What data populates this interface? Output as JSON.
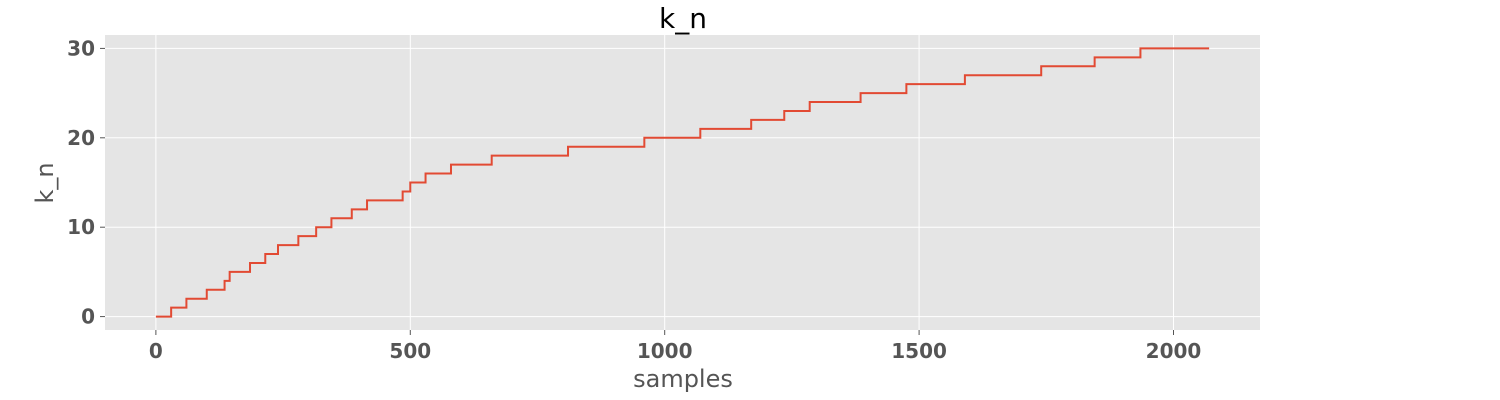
{
  "colors": {
    "plot_background": "#E5E5E5",
    "grid": "#FFFFFF",
    "line": "#E24A33",
    "text": "#555555",
    "title": "#000000"
  },
  "chart_data": {
    "type": "line",
    "style": "steps",
    "title": "k_n",
    "xlabel": "samples",
    "ylabel": "k_n",
    "xlim": [
      -100,
      2170
    ],
    "ylim": [
      -1.5,
      31.5
    ],
    "xticks": [
      0,
      500,
      1000,
      1500,
      2000
    ],
    "yticks": [
      0,
      10,
      20,
      30
    ],
    "grid": true,
    "legend": "none",
    "series": [
      {
        "x": [
          0,
          30,
          60,
          100,
          135,
          145,
          185,
          215,
          240,
          280,
          315,
          345,
          385,
          415,
          485,
          500,
          530,
          580,
          660,
          810,
          960,
          1070,
          1170,
          1235,
          1285,
          1385,
          1475,
          1590,
          1740,
          1845,
          1935,
          2070
        ],
        "y": [
          0,
          1,
          2,
          3,
          4,
          5,
          6,
          7,
          8,
          9,
          10,
          11,
          12,
          13,
          14,
          15,
          16,
          17,
          18,
          19,
          20,
          21,
          22,
          23,
          24,
          25,
          26,
          27,
          28,
          29,
          30,
          30
        ]
      }
    ]
  }
}
